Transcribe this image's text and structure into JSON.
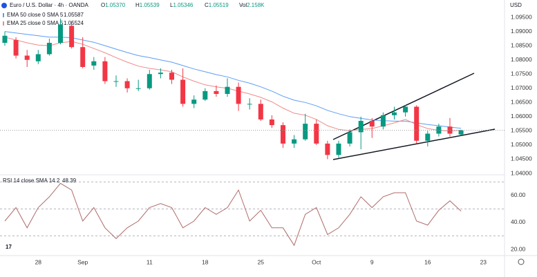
{
  "chart_data": [
    {
      "type": "candlestick",
      "title": "Euro / U.S. Dollar · 4h · OANDA",
      "header": [
        {
          "label": "O",
          "value": "1.05370"
        },
        {
          "label": "H",
          "value": "1.05539"
        },
        {
          "label": "L",
          "value": "1.05346"
        },
        {
          "label": "C",
          "value": "1.05519"
        },
        {
          "label": "Vol",
          "value": "2.158K"
        }
      ],
      "currency": "USD",
      "categories": [
        null,
        null,
        null,
        "28",
        null,
        null,
        null,
        "Sep",
        null,
        null,
        null,
        null,
        null,
        "11",
        null,
        null,
        null,
        null,
        "18",
        null,
        null,
        null,
        null,
        "25",
        null,
        null,
        null,
        null,
        "Oct",
        null,
        null,
        null,
        null,
        "9",
        null,
        null,
        null,
        null,
        "16",
        null,
        null,
        null,
        null,
        "23"
      ],
      "open": [
        1.086,
        1.087,
        1.0815,
        1.0795,
        1.082,
        1.086,
        1.092,
        1.0845,
        1.078,
        1.0795,
        1.0725,
        1.0725,
        1.07,
        1.07,
        1.075,
        1.0755,
        1.073,
        1.0645,
        1.066,
        1.069,
        1.068,
        1.0705,
        1.0645,
        1.0645,
        1.059,
        1.057,
        1.0505,
        1.052,
        1.0575,
        1.0505,
        1.0465,
        1.0505,
        1.0545,
        1.0585,
        1.0565,
        1.0605,
        1.0615,
        1.0635,
        1.0515,
        1.054,
        1.0565,
        1.0537,
        null,
        null
      ],
      "high": [
        1.09,
        1.088,
        1.0835,
        1.0835,
        1.0875,
        1.0945,
        1.0935,
        1.088,
        1.081,
        1.081,
        1.0745,
        1.0735,
        1.073,
        1.0765,
        1.077,
        1.0765,
        1.077,
        1.0675,
        1.07,
        1.071,
        1.0735,
        1.072,
        1.0665,
        1.066,
        1.0605,
        1.058,
        1.0535,
        1.061,
        1.059,
        1.0515,
        1.0515,
        1.0555,
        1.06,
        1.0595,
        1.0615,
        1.0635,
        1.064,
        1.064,
        1.055,
        1.0575,
        1.0595,
        1.05539,
        null,
        null
      ],
      "low": [
        1.085,
        1.0805,
        1.0775,
        1.0785,
        1.0815,
        1.0855,
        1.084,
        1.077,
        1.0765,
        1.0715,
        1.0705,
        1.0685,
        1.069,
        1.0695,
        1.0735,
        1.0715,
        1.0635,
        1.063,
        1.0655,
        1.067,
        1.067,
        1.062,
        1.0625,
        1.0585,
        1.056,
        1.049,
        1.049,
        1.0515,
        1.05,
        1.045,
        1.0455,
        1.0495,
        1.0485,
        1.0525,
        1.0555,
        1.059,
        1.06,
        1.0505,
        1.0495,
        1.053,
        1.053,
        1.05346,
        null,
        null
      ],
      "close": [
        1.0885,
        1.0815,
        1.08,
        1.082,
        1.086,
        1.0925,
        1.0845,
        1.0775,
        1.0795,
        1.0725,
        1.0725,
        1.07,
        1.07,
        1.075,
        1.0755,
        1.073,
        1.0645,
        1.066,
        1.069,
        1.068,
        1.0705,
        1.0645,
        1.0645,
        1.059,
        1.057,
        1.0505,
        1.052,
        1.0575,
        1.0505,
        1.0465,
        1.0505,
        1.0545,
        1.0585,
        1.0565,
        1.0605,
        1.0615,
        1.0635,
        1.0515,
        1.054,
        1.0565,
        1.054,
        1.05519,
        null,
        null
      ],
      "up_color": "#089981",
      "down_color": "#f23645",
      "series": [
        {
          "name": "EMA 50 close 0 SMA 5",
          "color": "#5b9cf6",
          "values": [
            1.09,
            1.0895,
            1.089,
            1.0885,
            1.088,
            1.088,
            1.0878,
            1.087,
            1.0862,
            1.085,
            1.0838,
            1.0826,
            1.0815,
            1.0808,
            1.08,
            1.0792,
            1.078,
            1.0768,
            1.0758,
            1.0748,
            1.074,
            1.0728,
            1.0718,
            1.0705,
            1.069,
            1.0672,
            1.0658,
            1.065,
            1.0638,
            1.0622,
            1.061,
            1.06,
            1.0594,
            1.0588,
            1.0586,
            1.0584,
            1.0584,
            1.0578,
            1.0572,
            1.0568,
            1.0563,
            1.05587,
            null,
            null
          ]
        },
        {
          "name": "EMA 25 close 0 SMA 5",
          "color": "#ef8a8a",
          "values": [
            1.088,
            1.087,
            1.086,
            1.0852,
            1.085,
            1.086,
            1.0865,
            1.0855,
            1.084,
            1.0825,
            1.0808,
            1.0792,
            1.0778,
            1.077,
            1.0765,
            1.0758,
            1.074,
            1.0725,
            1.0712,
            1.0705,
            1.07,
            1.069,
            1.068,
            1.0668,
            1.0652,
            1.063,
            1.0612,
            1.0605,
            1.059,
            1.0568,
            1.0555,
            1.055,
            1.0555,
            1.0558,
            1.0568,
            1.0578,
            1.059,
            1.0572,
            1.0558,
            1.0552,
            1.0549,
            1.05524,
            null,
            null
          ]
        }
      ],
      "ylim": [
        1.04,
        1.1011
      ],
      "yticks": [
        {
          "value": 1.04,
          "label": "1.04000"
        },
        {
          "value": 1.045,
          "label": "1.04500"
        },
        {
          "value": 1.05,
          "label": "1.05000"
        },
        {
          "value": 1.055,
          "label": "1.05500"
        },
        {
          "value": 1.06,
          "label": "1.06000"
        },
        {
          "value": 1.065,
          "label": "1.06500"
        },
        {
          "value": 1.07,
          "label": "1.07000"
        },
        {
          "value": 1.075,
          "label": "1.07500"
        },
        {
          "value": 1.08,
          "label": "1.08000"
        },
        {
          "value": 1.085,
          "label": "1.08500"
        },
        {
          "value": 1.09,
          "label": "1.09000"
        },
        {
          "value": 1.095,
          "label": "1.09500"
        }
      ]
    },
    {
      "type": "line",
      "series": [
        {
          "name": "RSI 14 close SMA 14 2",
          "color": "#b06a6a",
          "values": [
            41,
            51,
            36,
            51,
            59,
            69,
            64,
            41,
            51,
            36,
            28,
            36,
            41,
            51,
            54,
            51,
            36,
            41,
            51,
            46,
            51,
            64,
            41,
            49,
            36,
            36,
            23,
            46,
            51,
            31,
            36,
            46,
            59,
            51,
            59,
            62,
            62,
            41,
            38,
            49,
            56,
            48.39,
            null,
            null
          ]
        }
      ],
      "levels": [
        30,
        50,
        70
      ],
      "ylim": [
        15.4,
        73.8
      ],
      "yticks": [
        {
          "value": 20,
          "label": "20.00"
        },
        {
          "value": 40,
          "label": "40.00"
        },
        {
          "value": 60,
          "label": "60.00"
        }
      ]
    }
  ]
}
